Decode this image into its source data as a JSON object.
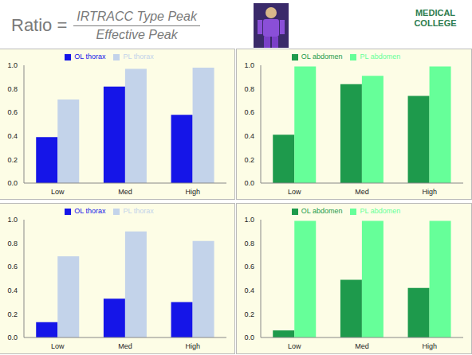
{
  "header": {
    "prefix": "Ratio =",
    "numerator": "IRTRACC Type Peak",
    "denominator": "Effective Peak",
    "logo": "MEDICAL COLLEGE"
  },
  "chart_data": [
    {
      "type": "bar",
      "categories": [
        "Low",
        "Med",
        "High"
      ],
      "series": [
        {
          "name": "OL thorax",
          "color": "#1515e8",
          "values": [
            0.39,
            0.82,
            0.58
          ]
        },
        {
          "name": "PL thorax",
          "color": "#c3d3ea",
          "values": [
            0.71,
            0.97,
            0.98
          ]
        }
      ],
      "ylim": [
        0,
        1
      ],
      "yticks": [
        {
          "value": 0,
          "label": "0.0"
        },
        0.2,
        0.4,
        0.6,
        0.8,
        {
          "value": 1,
          "label": "1.0"
        }
      ],
      "legend": "top",
      "grid": false
    },
    {
      "type": "bar",
      "categories": [
        "Low",
        "Med",
        "High"
      ],
      "series": [
        {
          "name": "OL abdomen",
          "color": "#1e9a4c",
          "values": [
            0.41,
            0.84,
            0.74
          ]
        },
        {
          "name": "PL abdomen",
          "color": "#66ff99",
          "values": [
            0.99,
            0.91,
            0.99
          ]
        }
      ],
      "ylim": [
        0,
        1
      ],
      "yticks": [
        {
          "value": 0,
          "label": "0.0"
        },
        0.2,
        0.4,
        0.6,
        0.8,
        {
          "value": 1,
          "label": "1.0"
        }
      ],
      "legend": "top",
      "grid": false
    },
    {
      "type": "bar",
      "categories": [
        "Low",
        "Med",
        "High"
      ],
      "series": [
        {
          "name": "OL thorax",
          "color": "#1515e8",
          "values": [
            0.13,
            0.33,
            0.3
          ]
        },
        {
          "name": "PL thorax",
          "color": "#c3d3ea",
          "values": [
            0.69,
            0.9,
            0.82
          ]
        }
      ],
      "ylim": [
        0,
        1
      ],
      "yticks": [
        {
          "value": 0,
          "label": "0.0"
        },
        0.2,
        0.4,
        0.6,
        0.8,
        {
          "value": 1,
          "label": "1.0"
        }
      ],
      "legend": "top",
      "grid": false
    },
    {
      "type": "bar",
      "categories": [
        "Low",
        "Med",
        "High"
      ],
      "series": [
        {
          "name": "OL abdomen",
          "color": "#1e9a4c",
          "values": [
            0.06,
            0.49,
            0.42
          ]
        },
        {
          "name": "PL abdomen",
          "color": "#66ff99",
          "values": [
            0.99,
            0.99,
            0.99
          ]
        }
      ],
      "ylim": [
        0,
        1
      ],
      "yticks": [
        {
          "value": 0,
          "label": "0.0"
        },
        0.2,
        0.4,
        0.6,
        0.8,
        {
          "value": 1,
          "label": "1.0"
        }
      ],
      "legend": "top",
      "grid": false
    }
  ]
}
